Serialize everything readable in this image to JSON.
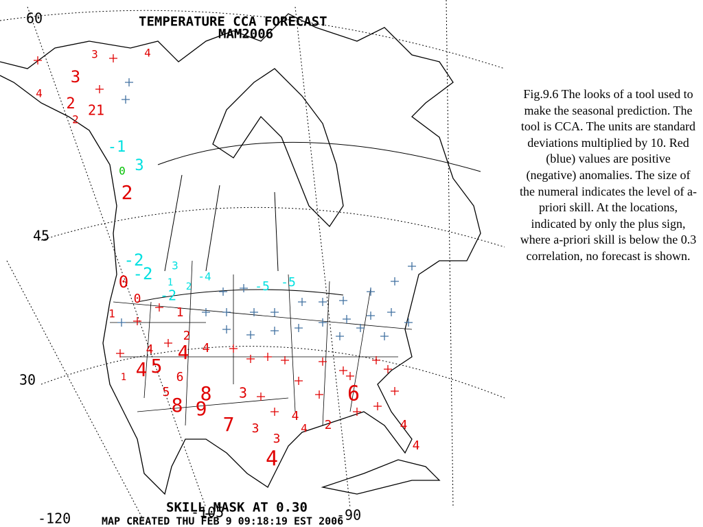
{
  "map": {
    "title": "TEMPERATURE CCA FORECAST",
    "subtitle": "MAM2006",
    "footer": "SKILL_MASK AT 0.30",
    "credit": "MAP CREATED THU FEB 9 09:18:19 EST 2006",
    "lat_labels": [
      "60",
      "45",
      "30"
    ],
    "lon_labels": [
      "-120",
      "-105",
      "-90"
    ],
    "anomalies": [
      {
        "label": "3",
        "color": "#e00000"
      },
      {
        "label": "4",
        "color": "#e00000"
      },
      {
        "label": "3",
        "color": "#e00000"
      },
      {
        "label": "4",
        "color": "#e00000"
      },
      {
        "label": "2",
        "color": "#e00000"
      },
      {
        "label": "2",
        "color": "#e00000"
      },
      {
        "label": "21",
        "color": "#e00000"
      },
      {
        "label": "-1",
        "color": "#00e0e0"
      },
      {
        "label": "3",
        "color": "#00e0e0"
      },
      {
        "label": "0",
        "color": "#00c000"
      },
      {
        "label": "2",
        "color": "#e00000"
      },
      {
        "label": "-2",
        "color": "#00e0e0"
      },
      {
        "label": "-2",
        "color": "#00e0e0"
      },
      {
        "label": "3",
        "color": "#00e0e0"
      },
      {
        "label": "-4",
        "color": "#00e0e0"
      },
      {
        "label": "1",
        "color": "#00e0e0"
      },
      {
        "label": "2",
        "color": "#00e0e0"
      },
      {
        "label": "-2",
        "color": "#00e0e0"
      },
      {
        "label": "-5",
        "color": "#00e0e0"
      },
      {
        "label": "-5",
        "color": "#00e0e0"
      },
      {
        "label": "0",
        "color": "#e00000"
      },
      {
        "label": "0",
        "color": "#e00000"
      },
      {
        "label": "1",
        "color": "#e00000"
      },
      {
        "label": "1",
        "color": "#e00000"
      },
      {
        "label": "2",
        "color": "#e00000"
      },
      {
        "label": "4",
        "color": "#e00000"
      },
      {
        "label": "4",
        "color": "#e00000"
      },
      {
        "label": "4",
        "color": "#e00000"
      },
      {
        "label": "4",
        "color": "#e00000"
      },
      {
        "label": "5",
        "color": "#e00000"
      },
      {
        "label": "6",
        "color": "#e00000"
      },
      {
        "label": "1",
        "color": "#e00000"
      },
      {
        "label": "5",
        "color": "#e00000"
      },
      {
        "label": "8",
        "color": "#e00000"
      },
      {
        "label": "8",
        "color": "#e00000"
      },
      {
        "label": "9",
        "color": "#e00000"
      },
      {
        "label": "3",
        "color": "#e00000"
      },
      {
        "label": "7",
        "color": "#e00000"
      },
      {
        "label": "3",
        "color": "#e00000"
      },
      {
        "label": "4",
        "color": "#e00000"
      },
      {
        "label": "3",
        "color": "#e00000"
      },
      {
        "label": "4",
        "color": "#e00000"
      },
      {
        "label": "2",
        "color": "#e00000"
      },
      {
        "label": "4",
        "color": "#e00000"
      },
      {
        "label": "6",
        "color": "#e00000"
      },
      {
        "label": "4",
        "color": "#e00000"
      },
      {
        "label": "4",
        "color": "#e00000"
      }
    ]
  },
  "caption": "Fig.9.6 The looks of a tool used to make the seasonal prediction. The tool is CCA. The units are standard deviations multiplied by 10. Red (blue) values are positive (negative) anomalies. The size of the numeral indicates the level of a-priori skill. At the locations, indicated by only the plus sign, where a-priori skill is below the 0.3 correlation, no forecast is shown."
}
